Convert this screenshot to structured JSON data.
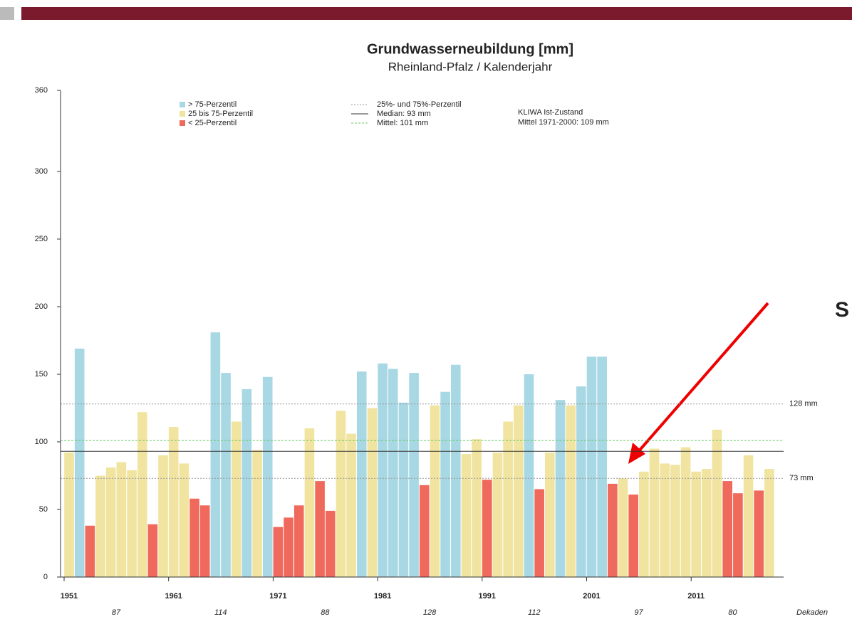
{
  "chart_data": {
    "type": "bar",
    "title": "Grundwasserneubildung [mm]",
    "subtitle": "Rheinland-Pfalz / Kalenderjahr",
    "categories": [
      "1951",
      null,
      null,
      null,
      null,
      null,
      null,
      null,
      null,
      null,
      "1961",
      null,
      null,
      null,
      null,
      null,
      null,
      null,
      null,
      null,
      "1971",
      null,
      null,
      null,
      null,
      null,
      null,
      null,
      null,
      null,
      "1981",
      null,
      null,
      null,
      null,
      null,
      null,
      null,
      null,
      null,
      "1991",
      null,
      null,
      null,
      null,
      null,
      null,
      null,
      null,
      null,
      "2001",
      null,
      null,
      null,
      null,
      null,
      null,
      null,
      null,
      null,
      "2011",
      null,
      null,
      null,
      null,
      null,
      null,
      null
    ],
    "values": [
      92,
      169,
      38,
      75,
      81,
      85,
      79,
      122,
      39,
      90,
      111,
      84,
      58,
      53,
      181,
      151,
      115,
      139,
      94,
      148,
      37,
      44,
      53,
      110,
      71,
      49,
      123,
      106,
      152,
      125,
      158,
      154,
      129,
      151,
      68,
      127,
      137,
      157,
      91,
      102,
      72,
      92,
      115,
      127,
      150,
      65,
      92,
      131,
      127,
      141,
      163,
      163,
      69,
      73,
      61,
      78,
      95,
      84,
      83,
      96,
      78,
      80,
      109,
      71,
      62,
      90,
      64,
      80
    ],
    "colors": {
      "high": "#a8d8e4",
      "mid": "#f1e4a0",
      "low": "#ef6a5c"
    },
    "ylim": [
      0,
      360
    ],
    "yticks": [
      0,
      50,
      100,
      150,
      200,
      250,
      300,
      360
    ],
    "legend": [
      "> 75-Perzentil",
      "25 bis 75-Perzentil",
      "< 25-Perzentil",
      "25%- und 75%-Perzentil",
      "Median: 93 mm",
      "Mittel: 101 mm"
    ],
    "info": [
      "KLIWA Ist-Zustand",
      "Mittel 1971-2000: 109 mm"
    ],
    "lines": {
      "p75": 128,
      "p25": 73,
      "median": 93,
      "mean": 101
    },
    "line_labels": {
      "p75": "128 mm",
      "p25": "73 mm"
    },
    "decades": [
      87,
      114,
      88,
      128,
      112,
      97,
      80
    ],
    "decade_label": "Dekaden",
    "annotation": "S"
  }
}
